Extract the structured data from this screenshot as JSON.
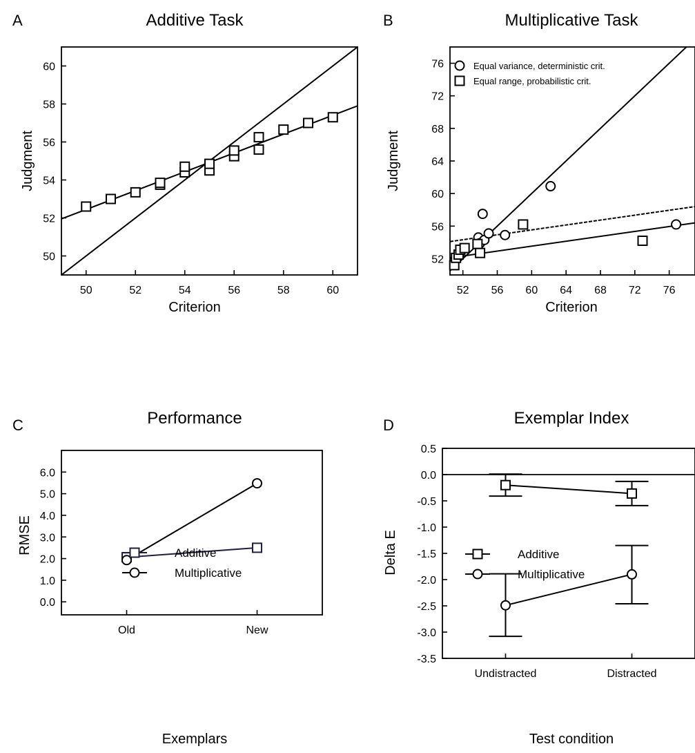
{
  "chart_data": [
    {
      "panel": "A",
      "type": "scatter",
      "title": "Additive Task",
      "xlabel": "Criterion",
      "ylabel": "Judgment",
      "xlim": [
        49,
        61
      ],
      "ylim": [
        49,
        61
      ],
      "xticks": [
        "50",
        "52",
        "54",
        "56",
        "58",
        "60"
      ],
      "yticks": [
        "50",
        "52",
        "54",
        "56",
        "58",
        "60"
      ],
      "series": [
        {
          "marker": "square",
          "points": [
            [
              50,
              52.6
            ],
            [
              51,
              53.0
            ],
            [
              52,
              53.35
            ],
            [
              53,
              53.75
            ],
            [
              53,
              53.85
            ],
            [
              54,
              54.4
            ],
            [
              54,
              54.7
            ],
            [
              55,
              54.5
            ],
            [
              55,
              54.85
            ],
            [
              56,
              55.25
            ],
            [
              56,
              55.55
            ],
            [
              57,
              55.6
            ],
            [
              57,
              56.25
            ],
            [
              58,
              56.65
            ],
            [
              59,
              57.0
            ],
            [
              60,
              57.3
            ]
          ]
        }
      ],
      "lines": [
        {
          "style": "solid",
          "from": [
            49,
            49
          ],
          "to": [
            61,
            61
          ]
        },
        {
          "style": "solid",
          "from": [
            49,
            51.95
          ],
          "to": [
            61,
            57.9
          ]
        }
      ]
    },
    {
      "panel": "B",
      "type": "scatter",
      "title": "Multiplicative Task",
      "xlabel": "Criterion",
      "ylabel": "Judgment",
      "xlim": [
        50.5,
        79
      ],
      "ylim": [
        50,
        78
      ],
      "xticks": [
        "52",
        "56",
        "60",
        "64",
        "68",
        "72",
        "76"
      ],
      "yticks": [
        "52",
        "56",
        "60",
        "64",
        "68",
        "72",
        "76"
      ],
      "legend": [
        "Equal variance, deterministic crit.",
        "Equal range, probabilistic crit."
      ],
      "legend_position": "top-left",
      "series": [
        {
          "name": "Equal variance, deterministic crit.",
          "marker": "circle",
          "points": [
            [
              53.8,
              54.6
            ],
            [
              54.0,
              53.9
            ],
            [
              54.3,
              57.5
            ],
            [
              54.5,
              54.3
            ],
            [
              55.0,
              55.1
            ],
            [
              56.9,
              54.9
            ],
            [
              62.2,
              60.9
            ],
            [
              76.8,
              56.2
            ]
          ]
        },
        {
          "name": "Equal range, probabilistic crit.",
          "marker": "square",
          "points": [
            [
              51.0,
              51.2
            ],
            [
              51.2,
              52.1
            ],
            [
              51.5,
              52.5
            ],
            [
              51.7,
              53.1
            ],
            [
              52.2,
              53.3
            ],
            [
              53.7,
              53.8
            ],
            [
              54.0,
              52.7
            ],
            [
              59.0,
              56.2
            ],
            [
              72.9,
              54.2
            ]
          ]
        }
      ],
      "lines": [
        {
          "style": "solid",
          "from": [
            50.5,
            50.5
          ],
          "to": [
            79,
            79
          ]
        },
        {
          "style": "solid",
          "from": [
            50.5,
            52.1
          ],
          "to": [
            79,
            56.4
          ]
        },
        {
          "style": "dashed",
          "from": [
            50.5,
            54.1
          ],
          "to": [
            79,
            58.4
          ]
        }
      ]
    },
    {
      "panel": "C",
      "type": "line",
      "title": "Performance",
      "xlabel": "Exemplars",
      "ylabel": "RMSE",
      "categories": [
        "Old",
        "New"
      ],
      "ylim": [
        -0.6,
        7.0
      ],
      "yticks": [
        "0.0",
        "1.0",
        "2.0",
        "3.0",
        "4.0",
        "5.0",
        "6.0"
      ],
      "legend_position": "bottom-left",
      "series": [
        {
          "name": "Additive",
          "marker": "square",
          "color": "#1f1f3d",
          "values": [
            2.06,
            2.5
          ]
        },
        {
          "name": "Multiplicative",
          "marker": "circle",
          "color": "#000000",
          "values": [
            1.93,
            5.48
          ]
        }
      ]
    },
    {
      "panel": "D",
      "type": "line",
      "title": "Exemplar Index",
      "xlabel": "Test condition",
      "ylabel": "Delta E",
      "categories": [
        "Undistracted",
        "Distracted"
      ],
      "ylim": [
        -3.5,
        0.5
      ],
      "yticks": [
        "0.5",
        "0.0",
        "-0.5",
        "-1.0",
        "-1.5",
        "-2.0",
        "-2.5",
        "-3.0",
        "-3.5"
      ],
      "reference_line": 0,
      "legend_position": "middle-left",
      "series": [
        {
          "name": "Additive",
          "marker": "square",
          "values": [
            -0.2,
            -0.36
          ],
          "error_low": [
            -0.41,
            -0.59
          ],
          "error_high": [
            0.01,
            -0.13
          ]
        },
        {
          "name": "Multiplicative",
          "marker": "circle",
          "values": [
            -2.49,
            -1.9
          ],
          "error_low": [
            -3.08,
            -2.46
          ],
          "error_high": [
            -1.89,
            -1.35
          ]
        }
      ]
    }
  ]
}
